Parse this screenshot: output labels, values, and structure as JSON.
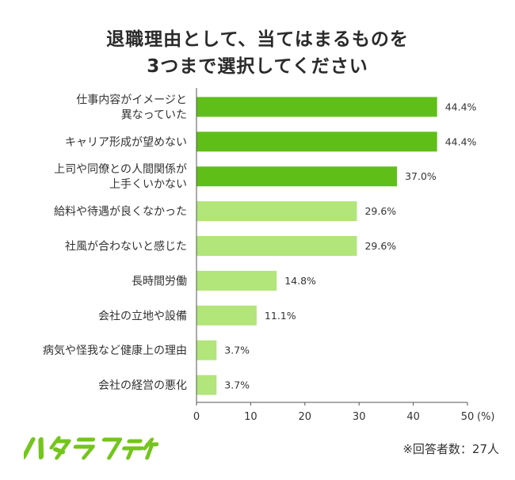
{
  "chart_data": {
    "type": "bar",
    "orientation": "horizontal",
    "title": [
      "退職理由として、当てはまるものを",
      "3つまで選択してください"
    ],
    "categories": [
      [
        "仕事内容がイメージと",
        "異なっていた"
      ],
      [
        "キャリア形成が望めない"
      ],
      [
        "上司や同僚との人間関係が",
        "上手くいかない"
      ],
      [
        "給料や待遇が良くなかった"
      ],
      [
        "社風が合わないと感じた"
      ],
      [
        "長時間労働"
      ],
      [
        "会社の立地や設備"
      ],
      [
        "病気や怪我など健康上の理由"
      ],
      [
        "会社の経営の悪化"
      ]
    ],
    "values": [
      44.4,
      44.4,
      37.0,
      29.6,
      29.6,
      14.8,
      11.1,
      3.7,
      3.7
    ],
    "value_labels": [
      "44.4%",
      "44.4%",
      "37.0%",
      "29.6%",
      "29.6%",
      "14.8%",
      "11.1%",
      "3.7%",
      "3.7%"
    ],
    "bar_colors": [
      "#5fbf18",
      "#5fbf18",
      "#5fbf18",
      "#b2e57a",
      "#b2e57a",
      "#b2e57a",
      "#b2e57a",
      "#b2e57a",
      "#b2e57a"
    ],
    "xlim": [
      0,
      50
    ],
    "xticks": [
      0,
      10,
      20,
      30,
      40,
      50
    ],
    "xunit": "(%)",
    "grid": false
  },
  "footer": {
    "logo_text": "ハタラクティブ",
    "logo_color": "#74c51c",
    "note": "※回答者数：27人"
  }
}
